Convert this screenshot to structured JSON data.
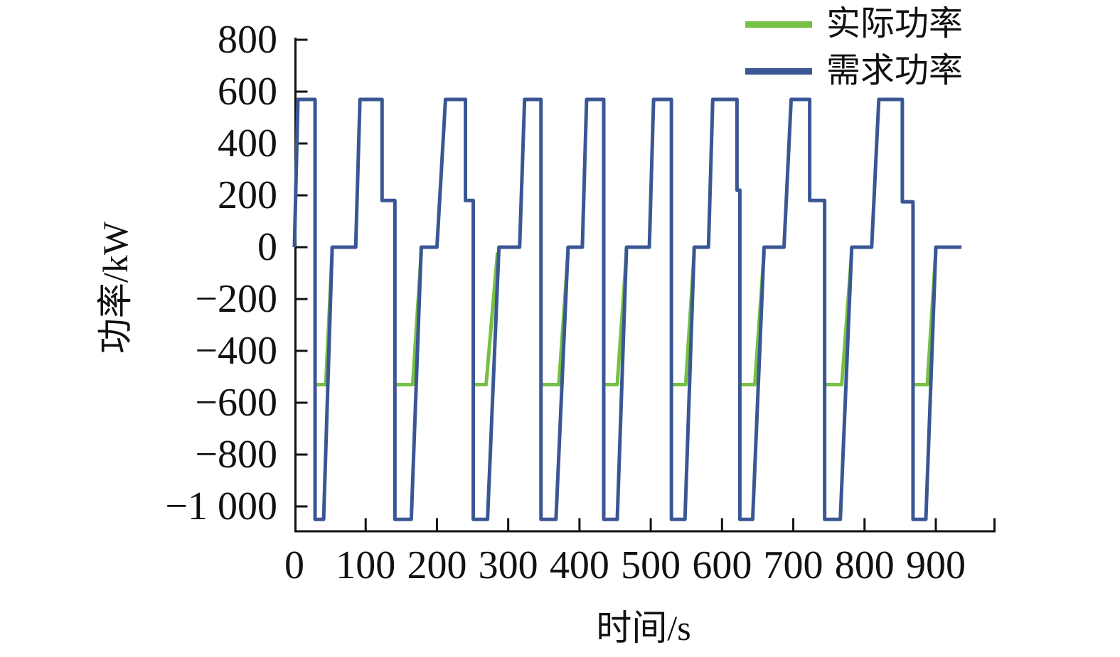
{
  "chart_data": {
    "type": "line",
    "title": "",
    "xlabel": "时间/s",
    "ylabel": "功率/kW",
    "grid": false,
    "legend_position": "top-right",
    "x_range_s": [
      0,
      983
    ],
    "y_range_kw": [
      -1096,
      808
    ],
    "x_ticks": [
      0,
      100,
      200,
      300,
      400,
      500,
      600,
      700,
      800,
      900
    ],
    "x_tick_labels": [
      "0",
      "100",
      "200",
      "300",
      "400",
      "500",
      "600",
      "700",
      "800",
      "900"
    ],
    "y_ticks": [
      800,
      600,
      400,
      200,
      0,
      -200,
      -400,
      -600,
      -800,
      -1000
    ],
    "y_tick_labels": [
      "800",
      "600",
      "400",
      "200",
      "0",
      "−200",
      "−400",
      "−600",
      "−800",
      "−1 000"
    ],
    "axis_color": "#111111",
    "series": [
      {
        "name": "实际功率",
        "color": "#76C043",
        "note": "actual power, visible only during regenerative phases: plateau ≈ −530 kW then ramp to 0",
        "visible_segments_t_kw": [
          [
            [
              29,
              -530
            ],
            [
              44,
              -530
            ],
            [
              53,
              -20
            ]
          ],
          [
            [
              141,
              -530
            ],
            [
              166,
              -530
            ],
            [
              178,
              -20
            ]
          ],
          [
            [
              251,
              -530
            ],
            [
              269,
              -530
            ],
            [
              285,
              -20
            ]
          ],
          [
            [
              346,
              -530
            ],
            [
              371,
              -530
            ],
            [
              384,
              -20
            ]
          ],
          [
            [
              434,
              -530
            ],
            [
              453,
              -530
            ],
            [
              466,
              -20
            ]
          ],
          [
            [
              529,
              -530
            ],
            [
              549,
              -530
            ],
            [
              561,
              -20
            ]
          ],
          [
            [
              625,
              -530
            ],
            [
              646,
              -530
            ],
            [
              659,
              -20
            ]
          ],
          [
            [
              744,
              -530
            ],
            [
              768,
              -530
            ],
            [
              782,
              -20
            ]
          ],
          [
            [
              868,
              -530
            ],
            [
              888,
              -530
            ],
            [
              900,
              -15
            ]
          ]
        ]
      },
      {
        "name": "需求功率",
        "color": "#3A5794",
        "note": "demand power, ~9 repeated driving cycles: peak ≈ 570 kW, dip ≈ −1050 kW, some cycles pause at ≈180 kW on the falling edge",
        "points_t_kw": [
          [
            0,
            0
          ],
          [
            5,
            570
          ],
          [
            29,
            570
          ],
          [
            29,
            -1050
          ],
          [
            41,
            -1050
          ],
          [
            53,
            0
          ],
          [
            86,
            0
          ],
          [
            92,
            570
          ],
          [
            123,
            570
          ],
          [
            123,
            180
          ],
          [
            141,
            180
          ],
          [
            141,
            -1050
          ],
          [
            164,
            -1050
          ],
          [
            178,
            0
          ],
          [
            200,
            0
          ],
          [
            212,
            570
          ],
          [
            240,
            570
          ],
          [
            240,
            180
          ],
          [
            251,
            180
          ],
          [
            251,
            -1050
          ],
          [
            271,
            -1050
          ],
          [
            287,
            0
          ],
          [
            316,
            0
          ],
          [
            323,
            570
          ],
          [
            346,
            570
          ],
          [
            346,
            -1050
          ],
          [
            367,
            -1050
          ],
          [
            384,
            0
          ],
          [
            404,
            0
          ],
          [
            410,
            570
          ],
          [
            434,
            570
          ],
          [
            434,
            -1050
          ],
          [
            453,
            -1050
          ],
          [
            466,
            0
          ],
          [
            498,
            0
          ],
          [
            504,
            570
          ],
          [
            529,
            570
          ],
          [
            529,
            -1050
          ],
          [
            548,
            -1050
          ],
          [
            561,
            0
          ],
          [
            581,
            0
          ],
          [
            587,
            570
          ],
          [
            621,
            570
          ],
          [
            621,
            220
          ],
          [
            625,
            220
          ],
          [
            625,
            -1050
          ],
          [
            643,
            -1050
          ],
          [
            659,
            0
          ],
          [
            687,
            0
          ],
          [
            697,
            570
          ],
          [
            723,
            570
          ],
          [
            723,
            180
          ],
          [
            744,
            180
          ],
          [
            744,
            -1050
          ],
          [
            766,
            -1050
          ],
          [
            782,
            0
          ],
          [
            810,
            0
          ],
          [
            820,
            570
          ],
          [
            853,
            570
          ],
          [
            853,
            175
          ],
          [
            868,
            175
          ],
          [
            868,
            -1050
          ],
          [
            886,
            -1050
          ],
          [
            900,
            0
          ],
          [
            936,
            0
          ]
        ]
      }
    ]
  }
}
